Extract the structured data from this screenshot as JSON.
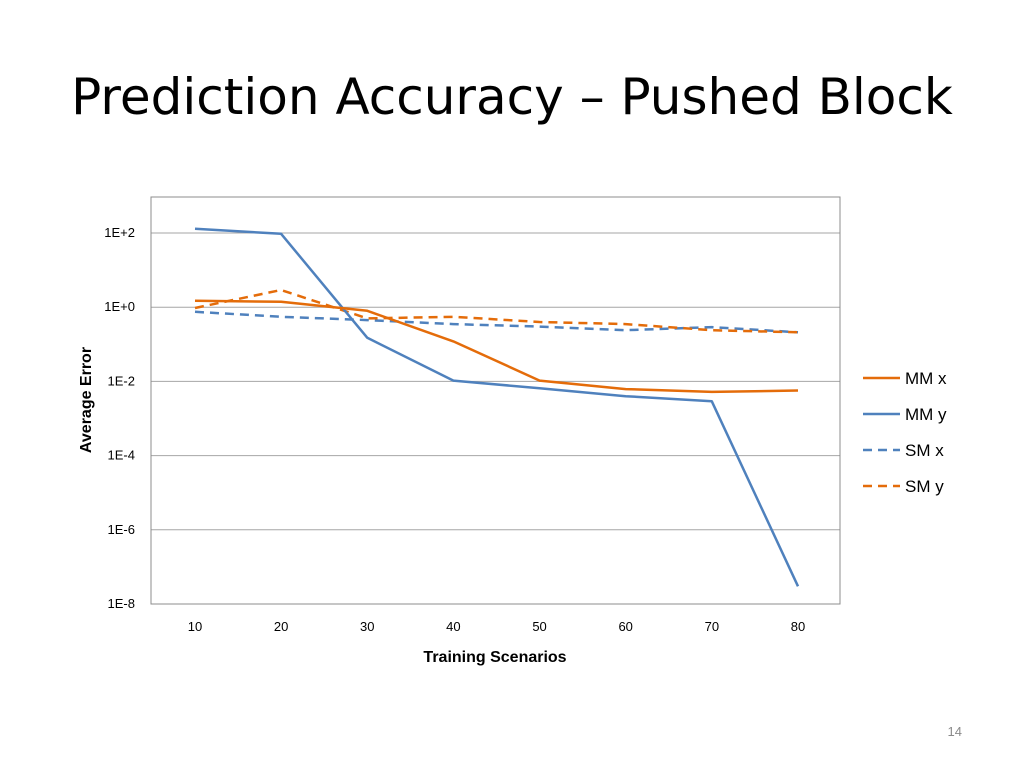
{
  "slide": {
    "title": "Prediction Accuracy – Pushed Block",
    "page_number": "14"
  },
  "chart_data": {
    "type": "line",
    "title": "",
    "xlabel": "Training Scenarios",
    "ylabel": "Average Error",
    "y_scale": "log",
    "ylim": [
      1e-08,
      1000
    ],
    "x": [
      10,
      20,
      30,
      40,
      50,
      60,
      70,
      80
    ],
    "x_tick_labels": [
      "10",
      "20",
      "30",
      "40",
      "50",
      "60",
      "70",
      "80"
    ],
    "y_ticks": [
      1e-08,
      1e-06,
      0.0001,
      0.01,
      1,
      100
    ],
    "y_tick_labels": [
      "1E-8",
      "1E-6",
      "1E-4",
      "1E-2",
      "1E+0",
      "1E+2"
    ],
    "grid": "horizontal",
    "legend_position": "right",
    "series": [
      {
        "name": "MM x",
        "color": "#E46C0A",
        "style": "solid",
        "values": [
          1.5,
          1.4,
          0.8,
          0.12,
          0.0105,
          0.0062,
          0.0052,
          0.0057
        ]
      },
      {
        "name": "MM y",
        "color": "#4F81BD",
        "style": "solid",
        "values": [
          130,
          95,
          0.15,
          0.0105,
          0.0065,
          0.004,
          0.0029,
          3e-08
        ]
      },
      {
        "name": "SM x",
        "color": "#4F81BD",
        "style": "dashed",
        "values": [
          0.75,
          0.55,
          0.45,
          0.35,
          0.3,
          0.24,
          0.29,
          0.21
        ]
      },
      {
        "name": "SM y",
        "color": "#E46C0A",
        "style": "dashed",
        "values": [
          0.95,
          2.9,
          0.5,
          0.55,
          0.4,
          0.35,
          0.24,
          0.21
        ]
      }
    ]
  }
}
